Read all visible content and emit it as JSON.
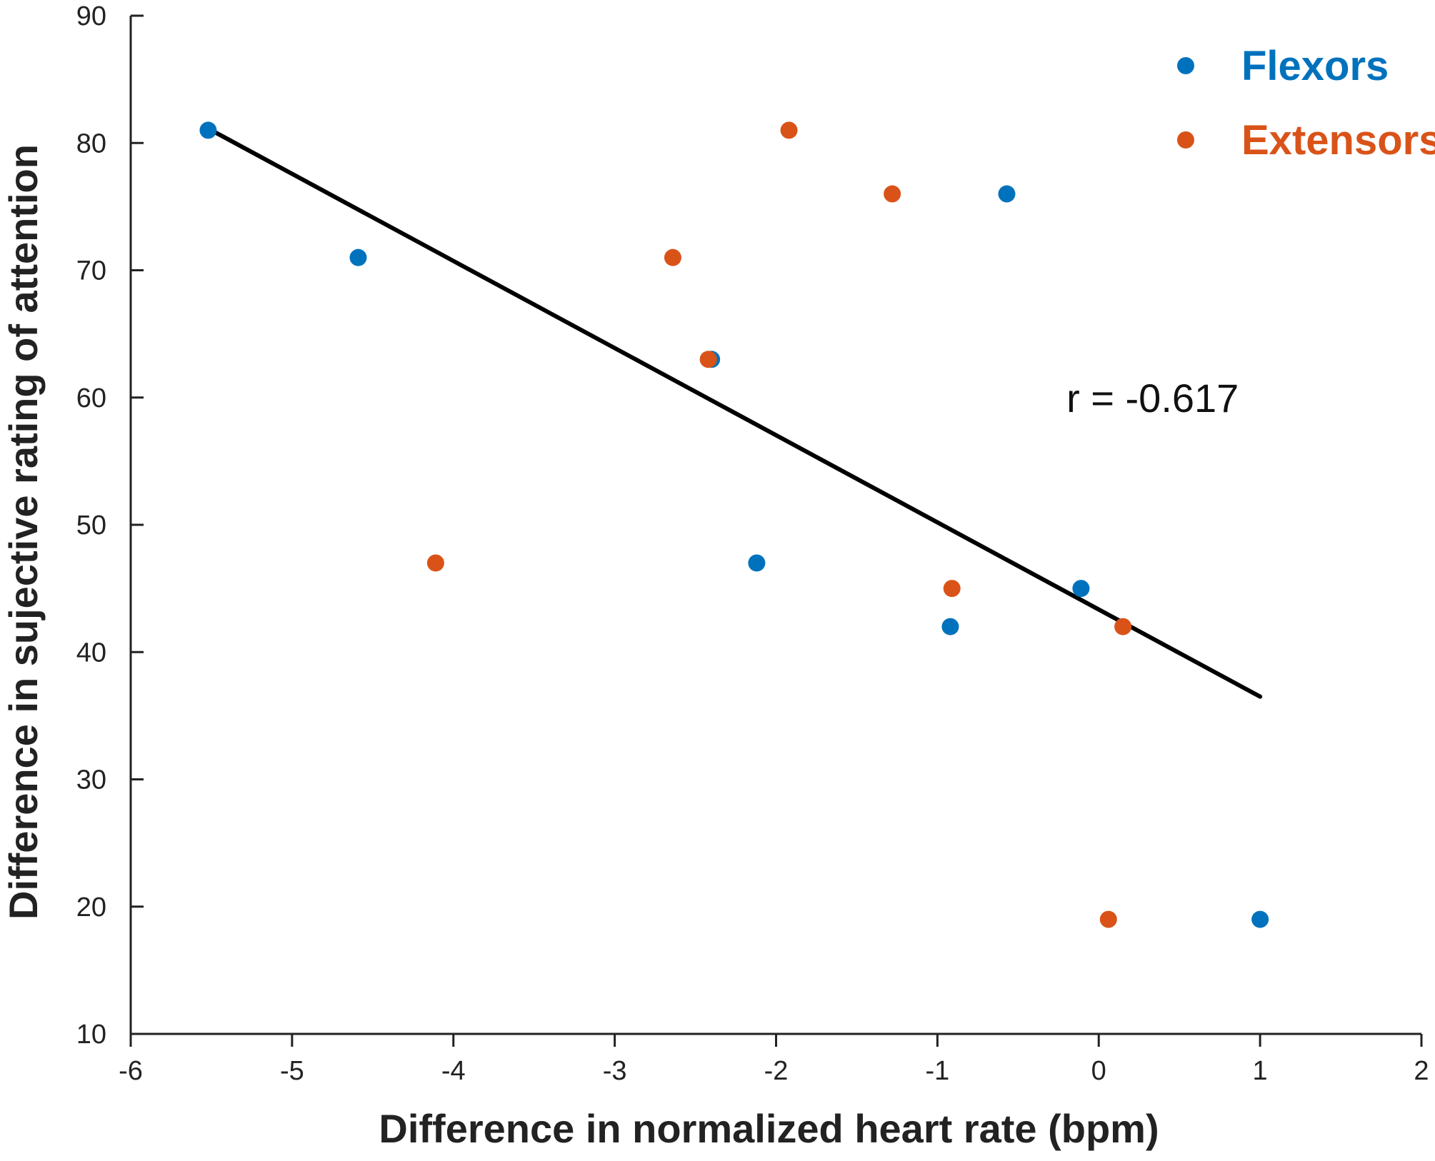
{
  "chart_data": {
    "type": "scatter",
    "title": "",
    "xlabel": "Difference in normalized heart rate (bpm)",
    "ylabel": "Difference in sujective rating of attention",
    "xlim": [
      -6,
      2
    ],
    "ylim": [
      10,
      90
    ],
    "xticks": [
      -6,
      -5,
      -4,
      -3,
      -2,
      -1,
      0,
      1,
      2
    ],
    "yticks": [
      10,
      20,
      30,
      40,
      50,
      60,
      70,
      80,
      90
    ],
    "xtick_labels": [
      "-6",
      "-5",
      "-4",
      "-3",
      "-2",
      "-1",
      "0",
      "1",
      "2"
    ],
    "ytick_labels": [
      "10",
      "20",
      "30",
      "40",
      "50",
      "60",
      "70",
      "80",
      "90"
    ],
    "grid": false,
    "legend_position": "top-right",
    "series": [
      {
        "name": "Flexors",
        "color": "#0072BD",
        "points": [
          {
            "x": -5.52,
            "y": 81
          },
          {
            "x": -4.59,
            "y": 71
          },
          {
            "x": -2.4,
            "y": 63
          },
          {
            "x": -0.57,
            "y": 76
          },
          {
            "x": -2.12,
            "y": 47
          },
          {
            "x": -0.92,
            "y": 42
          },
          {
            "x": -0.11,
            "y": 45
          },
          {
            "x": 1.0,
            "y": 19
          }
        ]
      },
      {
        "name": "Extensors",
        "color": "#D95319",
        "points": [
          {
            "x": -1.92,
            "y": 81
          },
          {
            "x": -1.28,
            "y": 76
          },
          {
            "x": -2.64,
            "y": 71
          },
          {
            "x": -2.42,
            "y": 63
          },
          {
            "x": -4.11,
            "y": 47
          },
          {
            "x": -0.91,
            "y": 45
          },
          {
            "x": 0.15,
            "y": 42
          },
          {
            "x": 0.06,
            "y": 19
          }
        ]
      }
    ],
    "fit_line": {
      "color": "#000000",
      "start": {
        "x": -5.5,
        "y": 81
      },
      "end": {
        "x": 1.0,
        "y": 36.5
      }
    },
    "annotations": [
      {
        "text": "r = -0.617",
        "x": -0.2,
        "y": 60
      }
    ]
  }
}
